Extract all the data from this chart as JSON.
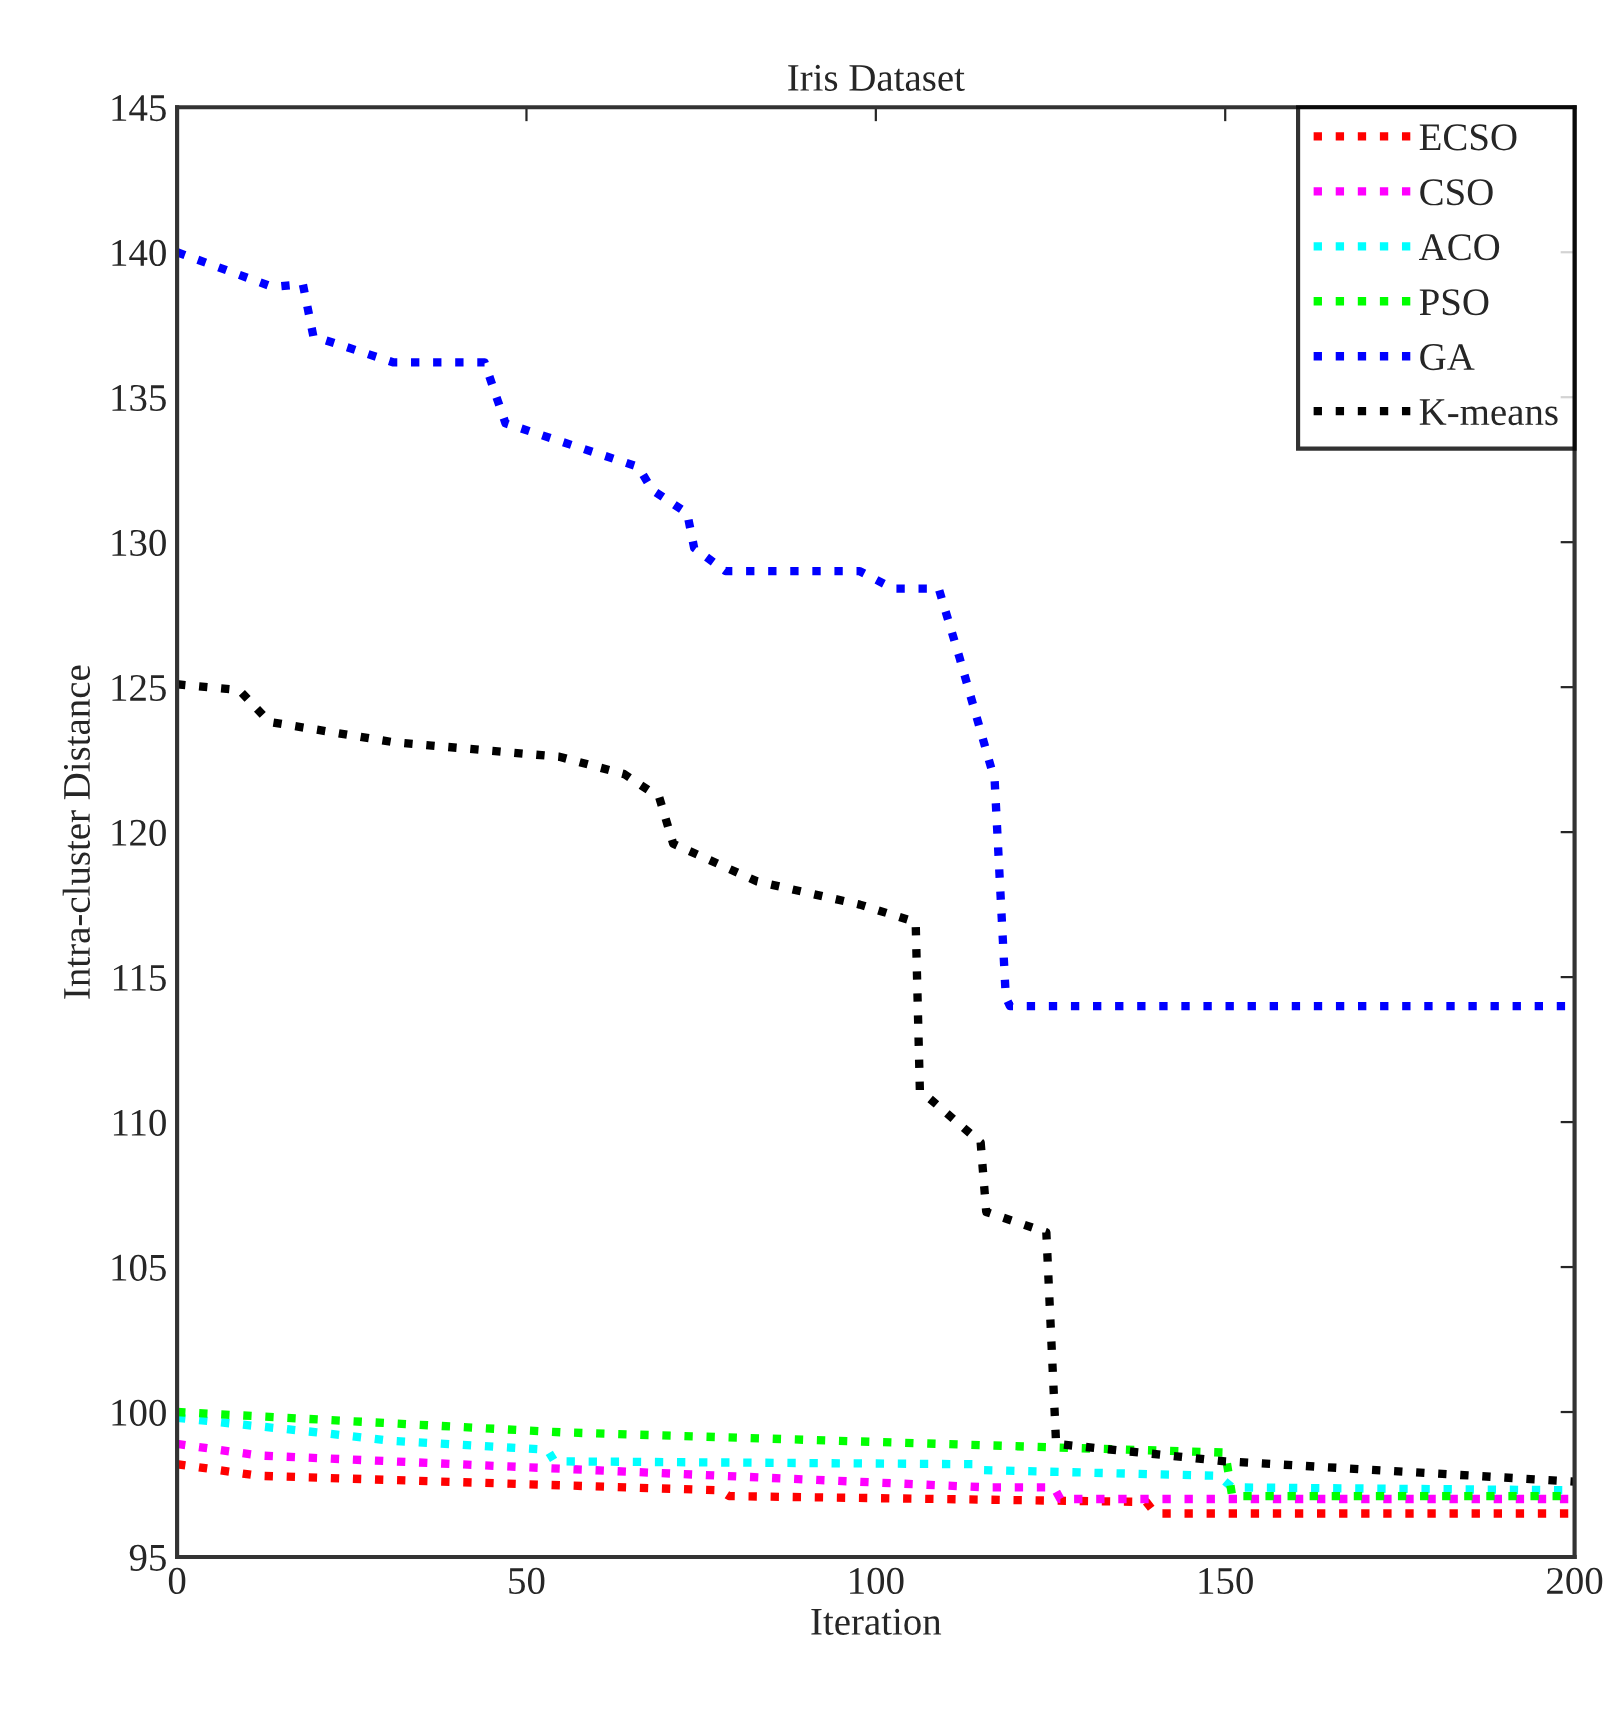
{
  "chart_data": {
    "type": "line",
    "title": "Iris Dataset",
    "xlabel": "Iteration",
    "ylabel": "Intra-cluster Distance",
    "xlim": [
      0,
      200
    ],
    "ylim": [
      95,
      145
    ],
    "xticks": [
      0,
      50,
      100,
      150,
      200
    ],
    "yticks": [
      95,
      100,
      105,
      110,
      115,
      120,
      125,
      130,
      135,
      140,
      145
    ],
    "grid": false,
    "legend": "top right",
    "line_style": "dotted",
    "marker": "none",
    "series": [
      {
        "name": "ECSO",
        "color": "#ff0000",
        "x": [
          0,
          11.7,
          77.7,
          79,
          138.7,
          140,
          200
        ],
        "values": [
          98.2,
          97.8,
          97.3,
          97.1,
          96.9,
          96.5,
          96.5
        ]
      },
      {
        "name": "CSO",
        "color": "#ff00ff",
        "x": [
          0,
          11.7,
          116,
          125.5,
          126.4,
          200
        ],
        "values": [
          98.9,
          98.5,
          97.4,
          97.4,
          97.0,
          97.0
        ]
      },
      {
        "name": "ACO",
        "color": "#00ffff",
        "x": [
          0,
          20,
          31,
          53,
          54,
          114,
          115,
          149,
          151,
          200
        ],
        "values": [
          99.8,
          99.3,
          99.0,
          98.7,
          98.3,
          98.2,
          98.0,
          97.8,
          97.4,
          97.3
        ]
      },
      {
        "name": "PSO",
        "color": "#00ff00",
        "x": [
          0,
          55,
          150,
          151,
          200
        ],
        "values": [
          100.0,
          99.3,
          98.6,
          97.1,
          97.1
        ]
      },
      {
        "name": "GA",
        "color": "#0000ff",
        "x": [
          0,
          13.7,
          18,
          19.5,
          31,
          44,
          47,
          66,
          68,
          73,
          74,
          78.5,
          97.7,
          102.5,
          109,
          112,
          117,
          118.6,
          119.2,
          200
        ],
        "values": [
          140.0,
          138.8,
          138.9,
          137.1,
          136.2,
          136.2,
          134.1,
          132.6,
          131.8,
          131.0,
          129.8,
          129.0,
          129.0,
          128.4,
          128.4,
          126.0,
          121.8,
          114.3,
          114.0,
          114.0
        ]
      },
      {
        "name": "K-means",
        "color": "#000000",
        "x": [
          0,
          8.9,
          13.2,
          31,
          54.7,
          64,
          69,
          71,
          83,
          97.7,
          105.7,
          106.3,
          115,
          115.8,
          124.4,
          125.8,
          150,
          200
        ],
        "values": [
          125.1,
          124.9,
          123.8,
          123.1,
          122.6,
          122.0,
          121.2,
          119.6,
          118.3,
          117.5,
          116.9,
          111.1,
          109.3,
          106.9,
          106.2,
          98.9,
          98.3,
          97.6
        ]
      }
    ]
  }
}
